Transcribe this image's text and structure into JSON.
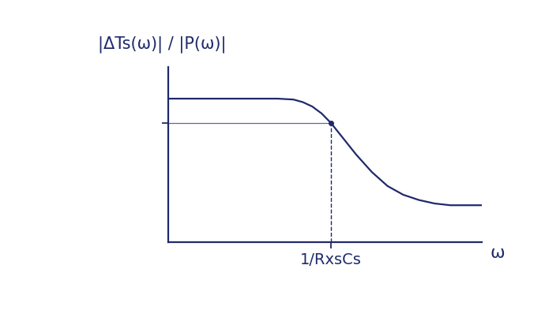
{
  "chart_data": {
    "type": "line",
    "y_label": "|ΔTs(ω)| / |P(ω)|",
    "x_label": "ω",
    "x": [
      0,
      1,
      2,
      3,
      3.5,
      4.0,
      4.3,
      4.6,
      4.9,
      5.2,
      5.6,
      6.0,
      6.5,
      7.0,
      7.5,
      8.0,
      8.5,
      9.0,
      9.5,
      10
    ],
    "values": [
      8.2,
      8.2,
      8.2,
      8.2,
      8.2,
      8.15,
      8.0,
      7.75,
      7.35,
      6.8,
      5.9,
      5.0,
      4.0,
      3.2,
      2.7,
      2.4,
      2.2,
      2.1,
      2.1,
      2.1
    ],
    "color": "#1f2a6b",
    "line_style": "solid",
    "xlim": [
      0,
      10
    ],
    "ylim": [
      0,
      10
    ],
    "xticks": [
      {
        "value": 5.2,
        "label": "1/RxsCs"
      }
    ],
    "yticks": [
      6.8
    ],
    "tick_labels": "x",
    "grid": false
  }
}
